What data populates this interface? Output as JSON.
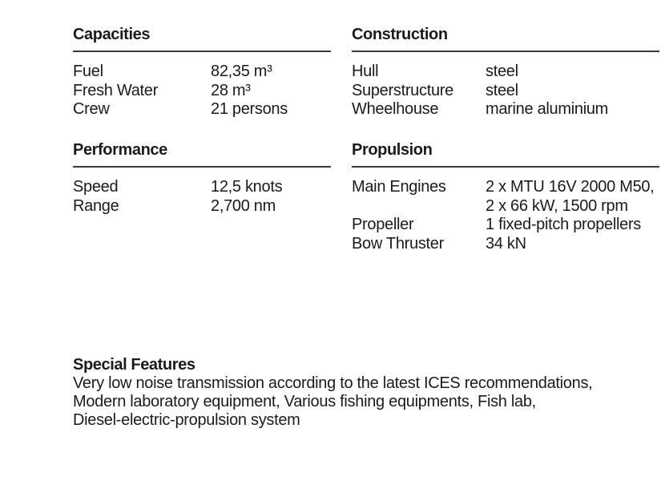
{
  "page": {
    "background": "#ffffff",
    "text_color": "#1b1b1b",
    "rule_color": "#3a3a3a"
  },
  "sections": {
    "capacities": {
      "title": "Capacities",
      "rows": [
        {
          "label": "Fuel",
          "value": "82,35 m³"
        },
        {
          "label": "Fresh Water",
          "value": "28 m³"
        },
        {
          "label": "Crew",
          "value": "21 persons"
        }
      ]
    },
    "construction": {
      "title": "Construction",
      "rows": [
        {
          "label": "Hull",
          "value": "steel"
        },
        {
          "label": "Superstructure",
          "value": "steel"
        },
        {
          "label": "Wheelhouse",
          "value": "marine aluminium"
        }
      ]
    },
    "performance": {
      "title": "Performance",
      "rows": [
        {
          "label": "Speed",
          "value": "12,5 knots"
        },
        {
          "label": "Range",
          "value": "2,700 nm"
        }
      ]
    },
    "propulsion": {
      "title": "Propulsion",
      "rows": [
        {
          "label": "Main Engines",
          "value": "2 x MTU 16V 2000 M50,\n2 x 66 kW, 1500 rpm"
        },
        {
          "label": "Propeller",
          "value": "1 fixed-pitch propellers"
        },
        {
          "label": "Bow Thruster",
          "value": "34 kN"
        }
      ]
    }
  },
  "special_features": {
    "title": "Special Features",
    "body": "Very low noise transmission according to the latest ICES recommendations,\nModern laboratory equipment, Various fishing equipments, Fish lab,\nDiesel-electric-propulsion system"
  }
}
